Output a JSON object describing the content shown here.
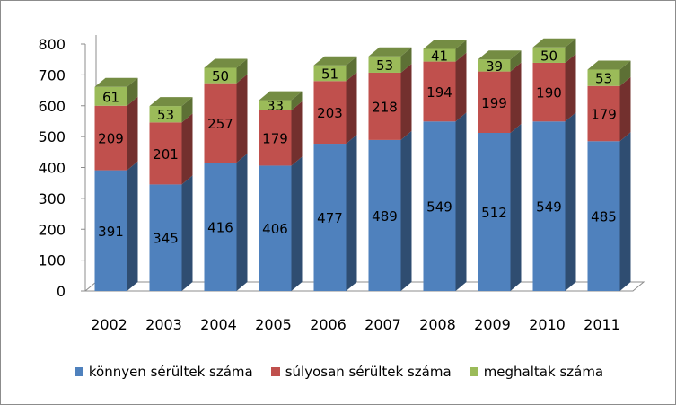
{
  "chart_data": {
    "type": "bar",
    "stacked": true,
    "three_d": true,
    "categories": [
      "2002",
      "2003",
      "2004",
      "2005",
      "2006",
      "2007",
      "2008",
      "2009",
      "2010",
      "2011"
    ],
    "series": [
      {
        "name": "könnyen sérültek száma",
        "color": "#4f81bd",
        "values": [
          391,
          345,
          416,
          406,
          477,
          489,
          549,
          512,
          549,
          485
        ]
      },
      {
        "name": "súlyosan sérültek száma",
        "color": "#c0504d",
        "values": [
          209,
          201,
          257,
          179,
          203,
          218,
          194,
          199,
          190,
          179
        ]
      },
      {
        "name": "meghaltak száma",
        "color": "#9bbb59",
        "values": [
          61,
          53,
          50,
          33,
          51,
          53,
          41,
          39,
          50,
          53
        ]
      }
    ],
    "ylim": [
      0,
      800
    ],
    "yticks": [
      0,
      100,
      200,
      300,
      400,
      500,
      600,
      700,
      800
    ],
    "grid": false,
    "legend": "bottom"
  }
}
